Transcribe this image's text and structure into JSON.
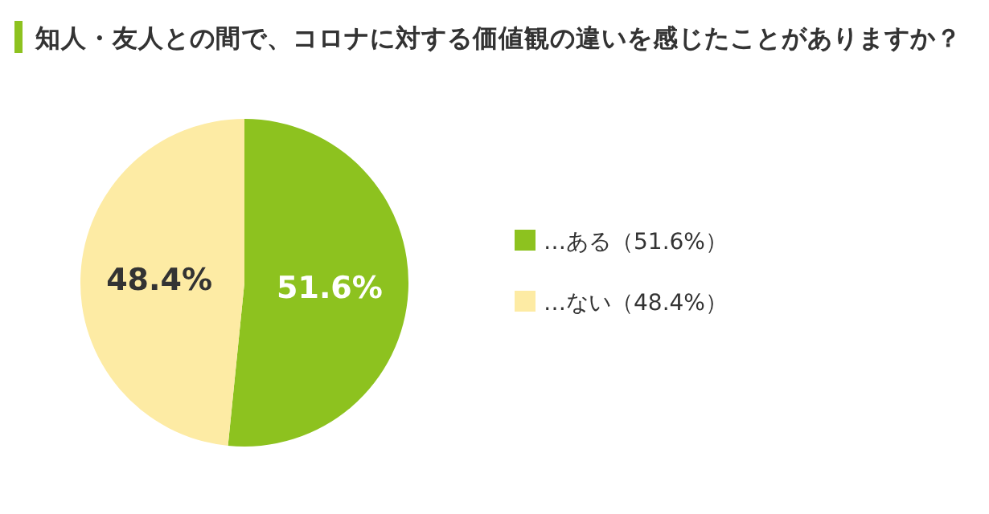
{
  "chart_data": {
    "type": "pie",
    "title": "知人・友人との間で、コロナに対する価値観の違いを感じたことがありますか？",
    "categories": [
      "…ある（51.6%）",
      "…ない（48.4%）"
    ],
    "values": [
      51.6,
      48.4
    ],
    "colors": [
      "#8dc21f",
      "#fdeba4"
    ],
    "value_labels": [
      "51.6%",
      "48.4%"
    ],
    "legend": "right"
  }
}
